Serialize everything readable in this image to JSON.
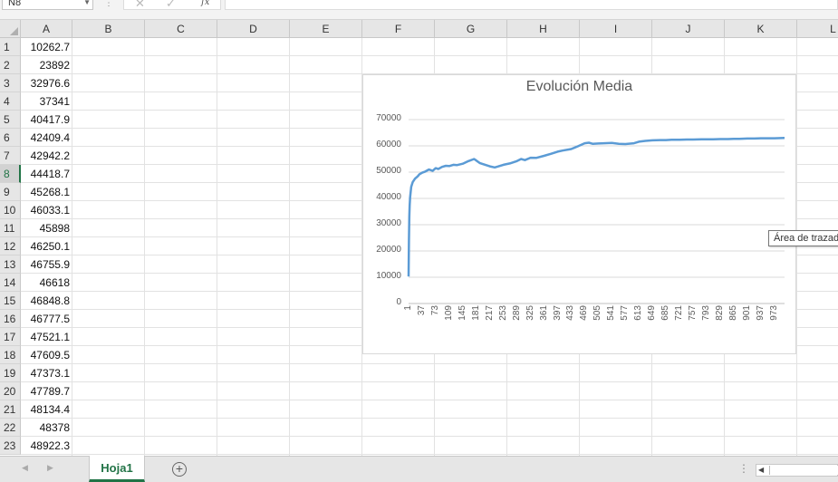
{
  "formula_bar": {
    "name_box": "N8",
    "cancel_icon": "x-icon",
    "confirm_icon": "check-icon",
    "fx_label": "fx",
    "formula_value": ""
  },
  "columns": [
    "A",
    "B",
    "C",
    "D",
    "E",
    "F",
    "G",
    "H",
    "I",
    "J",
    "K",
    "L"
  ],
  "rows": [
    "1",
    "2",
    "3",
    "4",
    "5",
    "6",
    "7",
    "8",
    "9",
    "10",
    "11",
    "12",
    "13",
    "14",
    "15",
    "16",
    "17",
    "18",
    "19",
    "20",
    "21",
    "22",
    "23"
  ],
  "active_row": "8",
  "column_a_values": [
    "10262.7",
    "23892",
    "32976.6",
    "37341",
    "40417.9",
    "42409.4",
    "42942.2",
    "44418.7",
    "45268.1",
    "46033.1",
    "45898",
    "46250.1",
    "46755.9",
    "46618",
    "46848.8",
    "46777.5",
    "47521.1",
    "47609.5",
    "47373.1",
    "47789.7",
    "48134.4",
    "48378",
    "48922.3"
  ],
  "chart_data": {
    "type": "line",
    "title": "Evolución Media",
    "xlabel": "",
    "ylabel": "",
    "ylim": [
      0,
      70000
    ],
    "y_ticks": [
      "0",
      "10000",
      "20000",
      "30000",
      "40000",
      "50000",
      "60000",
      "70000"
    ],
    "x_ticks": [
      "1",
      "37",
      "73",
      "109",
      "145",
      "181",
      "217",
      "253",
      "289",
      "325",
      "361",
      "397",
      "433",
      "469",
      "505",
      "541",
      "577",
      "613",
      "649",
      "685",
      "721",
      "757",
      "793",
      "829",
      "865",
      "901",
      "937",
      "973"
    ],
    "grid": true,
    "legend": "none",
    "color": "#5b9bd5",
    "series": [
      {
        "x": [
          1,
          2,
          3,
          4,
          5,
          8,
          12,
          18,
          25,
          30,
          37,
          45,
          55,
          65,
          73,
          80,
          90,
          100,
          109,
          120,
          130,
          145,
          160,
          175,
          181,
          190,
          200,
          217,
          230,
          240,
          253,
          270,
          289,
          300,
          310,
          325,
          340,
          361,
          380,
          397,
          410,
          433,
          450,
          469,
          480,
          490,
          505,
          520,
          541,
          560,
          577,
          600,
          613,
          630,
          649,
          670,
          685,
          700,
          721,
          740,
          757,
          780,
          793,
          810,
          829,
          850,
          865,
          880,
          901,
          920,
          937,
          960,
          973,
          1000
        ],
        "y": [
          10262.7,
          23892,
          32976.6,
          37341,
          40417.9,
          44418.7,
          46250.1,
          47521.1,
          48378,
          49200,
          49800,
          50200,
          51000,
          50500,
          51500,
          51200,
          52000,
          52400,
          52300,
          52800,
          52700,
          53200,
          54200,
          55000,
          54400,
          53500,
          53000,
          52200,
          51800,
          52200,
          52800,
          53300,
          54200,
          55000,
          54600,
          55500,
          55400,
          56200,
          57000,
          57800,
          58200,
          58800,
          59800,
          61000,
          61200,
          60800,
          60900,
          61000,
          61100,
          60800,
          60700,
          61000,
          61600,
          61900,
          62100,
          62200,
          62200,
          62300,
          62300,
          62400,
          62400,
          62500,
          62500,
          62500,
          62600,
          62600,
          62700,
          62700,
          62800,
          62800,
          62900,
          62900,
          62900,
          63000
        ]
      }
    ]
  },
  "tooltip": "Área de trazado",
  "tabs": {
    "active_sheet": "Hoja1",
    "add_icon": "plus-circle-icon"
  }
}
